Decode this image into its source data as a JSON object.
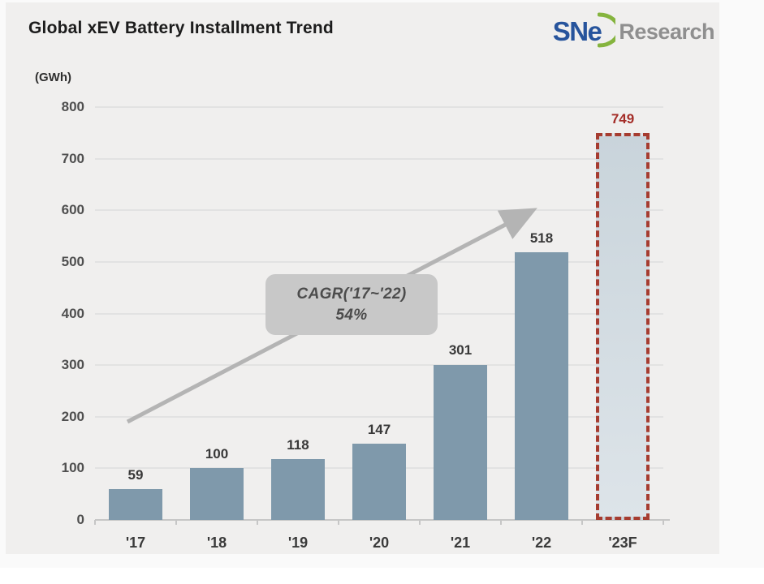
{
  "header": {
    "title": "Global xEV Battery Installment Trend",
    "logo": {
      "brand": "SNe",
      "suffix": "Research",
      "brand_color": "#27549c",
      "swoosh_color": "#85b43e",
      "suffix_color": "#8f8f8f"
    }
  },
  "chart_data": {
    "type": "bar",
    "title": "Global xEV Battery Installment Trend",
    "ylabel": "(GWh)",
    "categories": [
      "'17",
      "'18",
      "'19",
      "'20",
      "'21",
      "'22",
      "'23F"
    ],
    "values": [
      59,
      100,
      118,
      147,
      301,
      518,
      749
    ],
    "forecast_index": 6,
    "ylim": [
      0,
      800
    ],
    "yticks": [
      0,
      100,
      200,
      300,
      400,
      500,
      600,
      700,
      800
    ],
    "grid": "on",
    "legend": "none",
    "annotation": {
      "line1": "CAGR('17~'22)",
      "line2": "54%",
      "arrow": "gray diagonal arrow from '17 bar up to '22 bar"
    },
    "colors": {
      "bar": "#7f99ab",
      "forecast_fill_top": "#c9d4db",
      "forecast_fill_bottom": "#dde4e9",
      "forecast_border": "#a63c30",
      "value_label": "#383838",
      "forecast_value_label": "#a42d28",
      "gridline": "#e2e2e2",
      "axis": "#c6c6c6",
      "arrow": "#b4b4b4",
      "annotation_bg": "#c8c8c8",
      "annotation_text": "#4c4c4c",
      "panel_bg": "#f0efee"
    }
  }
}
